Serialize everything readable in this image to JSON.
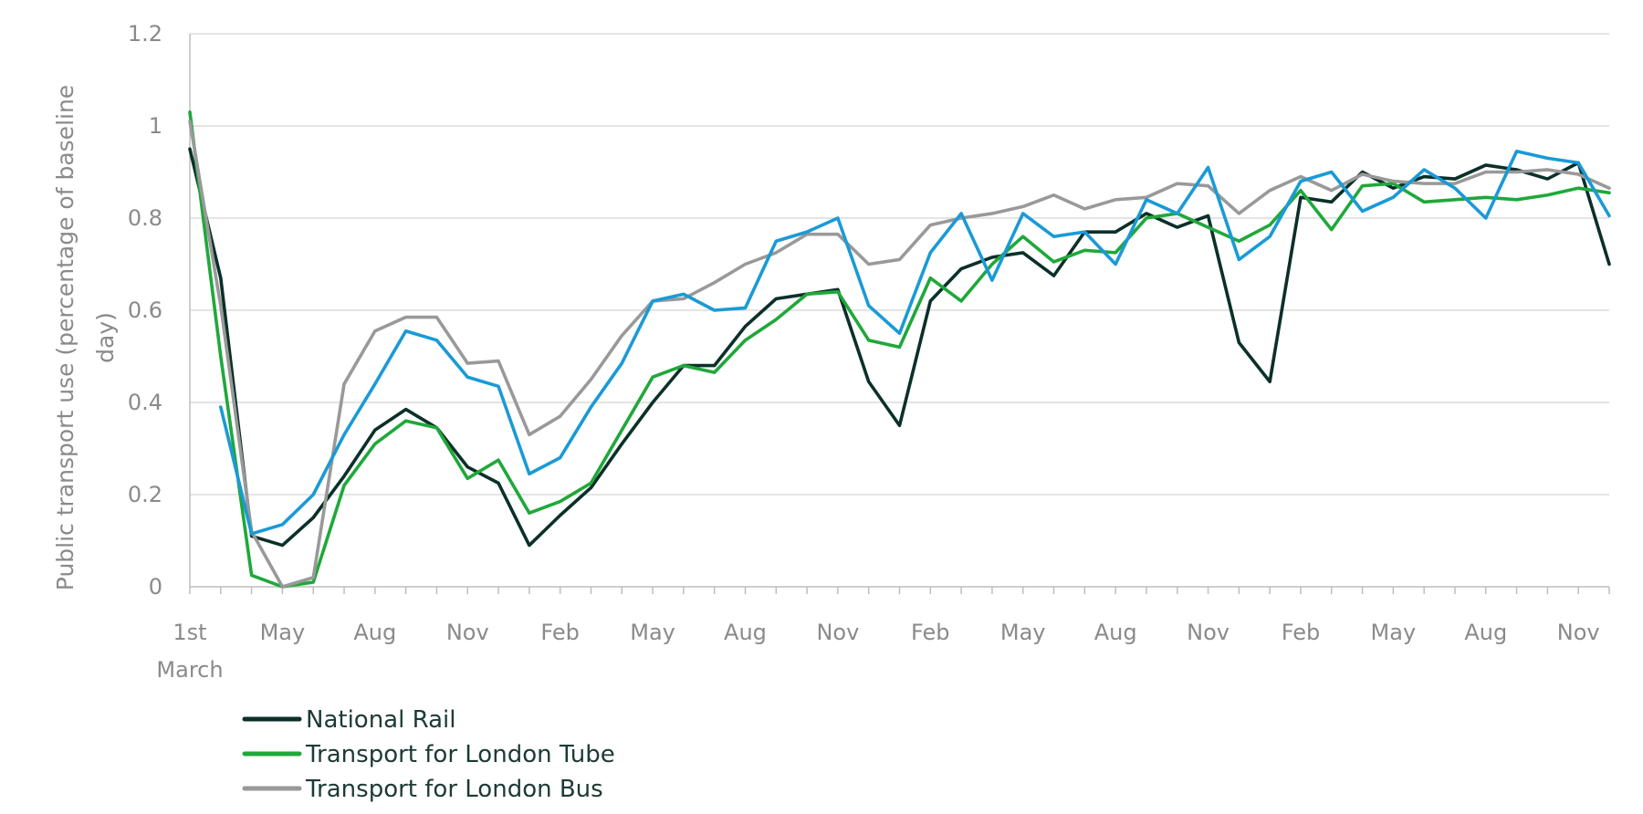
{
  "chart_data": {
    "type": "line",
    "ylabel": [
      "Public transport use (percentage of baseline",
      "day)"
    ],
    "xlabel": "",
    "ylim": [
      0,
      1.2
    ],
    "yticks": [
      "0",
      "0.2",
      "0.4",
      "0.6",
      "0.8",
      "1",
      "1.2"
    ],
    "x_count": 47,
    "xtick_labels": [
      {
        "index": 0,
        "lines": [
          "1st",
          "March"
        ]
      },
      {
        "index": 3,
        "lines": [
          "May"
        ]
      },
      {
        "index": 6,
        "lines": [
          "Aug"
        ]
      },
      {
        "index": 9,
        "lines": [
          "Nov"
        ]
      },
      {
        "index": 12,
        "lines": [
          "Feb"
        ]
      },
      {
        "index": 15,
        "lines": [
          "May"
        ]
      },
      {
        "index": 18,
        "lines": [
          "Aug"
        ]
      },
      {
        "index": 21,
        "lines": [
          "Nov"
        ]
      },
      {
        "index": 24,
        "lines": [
          "Feb"
        ]
      },
      {
        "index": 27,
        "lines": [
          "May"
        ]
      },
      {
        "index": 30,
        "lines": [
          "Aug"
        ]
      },
      {
        "index": 33,
        "lines": [
          "Nov"
        ]
      },
      {
        "index": 36,
        "lines": [
          "Feb"
        ]
      },
      {
        "index": 39,
        "lines": [
          "May"
        ]
      },
      {
        "index": 42,
        "lines": [
          "Aug"
        ]
      },
      {
        "index": 45,
        "lines": [
          "Nov"
        ]
      }
    ],
    "grid": true,
    "legend_position": "bottom-left",
    "series": [
      {
        "name": "National Rail",
        "color": "#0b3029",
        "in_legend": true,
        "values": [
          0.95,
          0.67,
          0.11,
          0.09,
          0.15,
          0.24,
          0.34,
          0.385,
          0.345,
          0.26,
          0.225,
          0.09,
          0.155,
          0.215,
          0.31,
          0.4,
          0.48,
          0.48,
          0.565,
          0.625,
          0.635,
          0.645,
          0.445,
          0.35,
          0.62,
          0.69,
          0.715,
          0.725,
          0.675,
          0.77,
          0.77,
          0.81,
          0.78,
          0.805,
          0.53,
          0.445,
          0.845,
          0.835,
          0.9,
          0.865,
          0.89,
          0.885,
          0.915,
          0.905,
          0.885,
          0.92,
          0.7
        ]
      },
      {
        "name": "Transport for London Tube",
        "color": "#1fa83a",
        "in_legend": true,
        "values": [
          1.03,
          0.5,
          0.025,
          0.0,
          0.01,
          0.22,
          0.31,
          0.36,
          0.345,
          0.235,
          0.275,
          0.16,
          0.185,
          0.225,
          0.34,
          0.455,
          0.48,
          0.465,
          0.535,
          0.58,
          0.635,
          0.64,
          0.535,
          0.52,
          0.67,
          0.62,
          0.7,
          0.76,
          0.705,
          0.73,
          0.725,
          0.8,
          0.81,
          0.78,
          0.75,
          0.785,
          0.86,
          0.775,
          0.87,
          0.875,
          0.835,
          0.84,
          0.845,
          0.84,
          0.85,
          0.865,
          0.855
        ]
      },
      {
        "name": "Transport for London Bus",
        "color": "#999999",
        "in_legend": true,
        "values": [
          1.01,
          0.61,
          0.12,
          0.0,
          0.02,
          0.44,
          0.555,
          0.585,
          0.585,
          0.485,
          0.49,
          0.33,
          0.37,
          0.45,
          0.545,
          0.62,
          0.625,
          0.66,
          0.7,
          0.725,
          0.765,
          0.765,
          0.7,
          0.71,
          0.785,
          0.8,
          0.81,
          0.825,
          0.85,
          0.82,
          0.84,
          0.845,
          0.875,
          0.87,
          0.81,
          0.86,
          0.89,
          0.86,
          0.895,
          0.88,
          0.875,
          0.875,
          0.9,
          0.9,
          0.905,
          0.895,
          0.865
        ]
      },
      {
        "name": "",
        "color": "#1a9ad6",
        "in_legend": false,
        "values": [
          null,
          0.39,
          0.115,
          0.135,
          0.2,
          0.33,
          0.44,
          0.555,
          0.535,
          0.455,
          0.435,
          0.245,
          0.28,
          0.39,
          0.485,
          0.62,
          0.635,
          0.6,
          0.605,
          0.75,
          0.77,
          0.8,
          0.61,
          0.55,
          0.725,
          0.81,
          0.665,
          0.81,
          0.76,
          0.77,
          0.7,
          0.84,
          0.81,
          0.91,
          0.71,
          0.76,
          0.88,
          0.9,
          0.815,
          0.845,
          0.905,
          0.865,
          0.8,
          0.945,
          0.93,
          0.92,
          0.805
        ]
      }
    ]
  }
}
